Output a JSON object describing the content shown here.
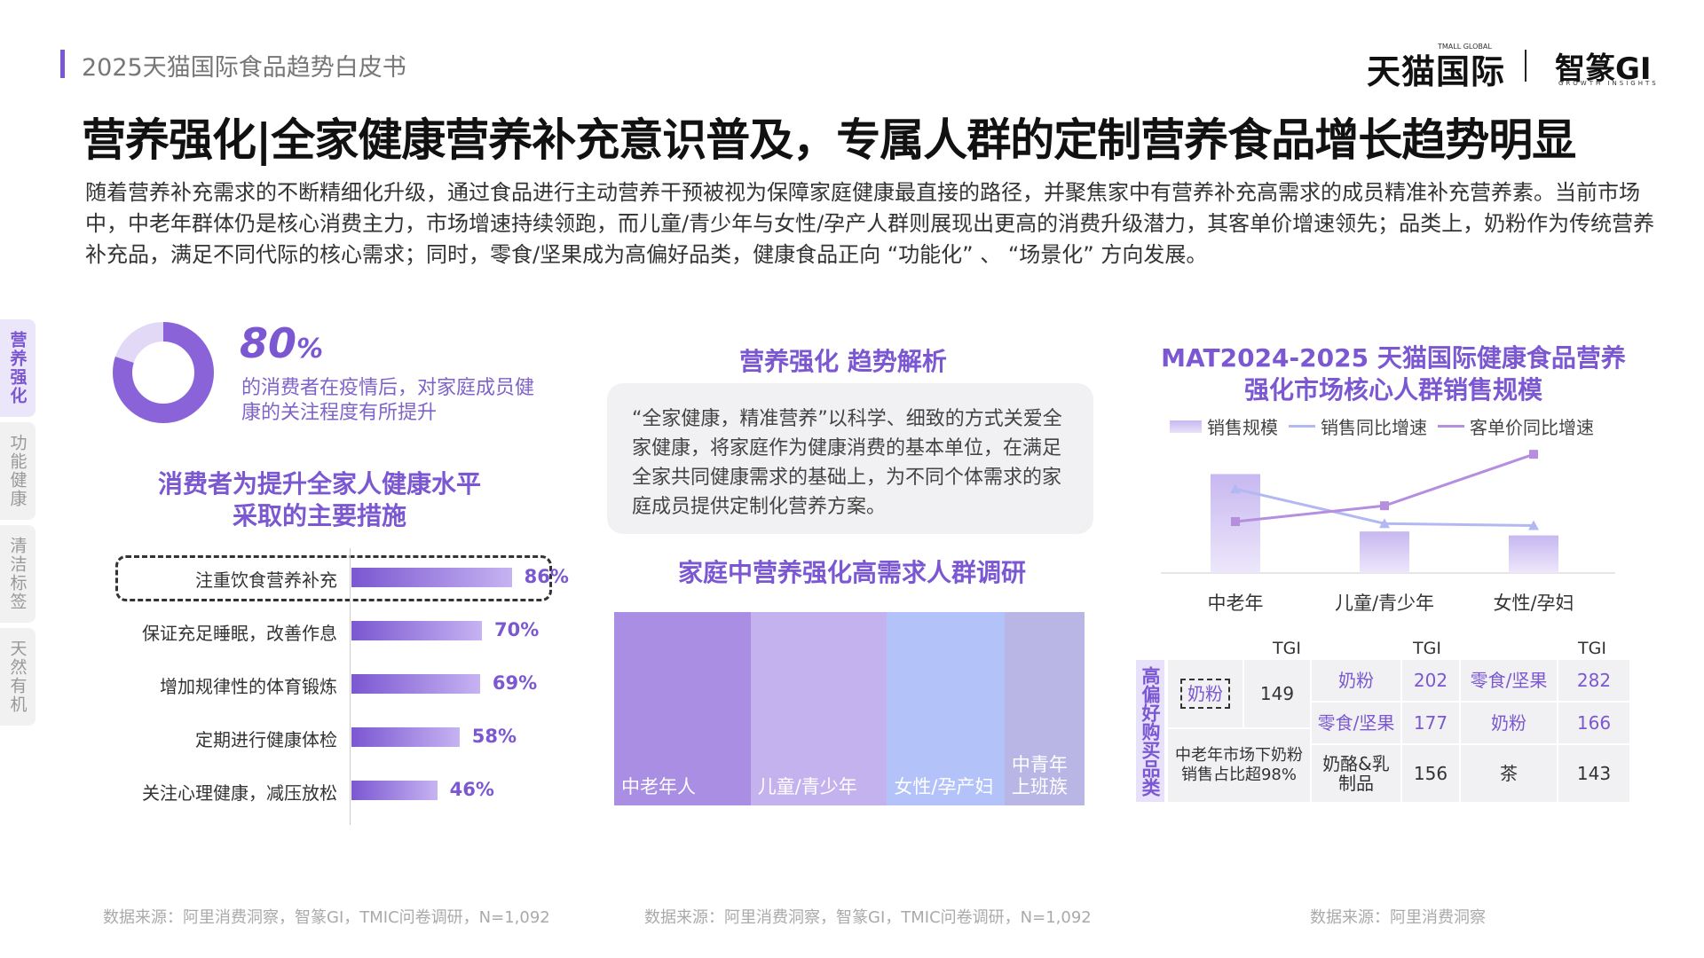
{
  "header": {
    "report_title": "2025天猫国际食品趋势白皮书",
    "brand1": "天猫国际",
    "brand1_sub": "TMALL GLOBAL",
    "brand2": "智篆GI",
    "brand2_sub": "GROWTH INSIGHTS"
  },
  "main_title": "营养强化|全家健康营养补充意识普及，专属人群的定制营养食品增长趋势明显",
  "intro": "随着营养补充需求的不断精细化升级，通过食品进行主动营养干预被视为保障家庭健康最直接的路径，并聚焦家中有营养补充高需求的成员精准补充营养素。当前市场中，中老年群体仍是核心消费主力，市场增速持续领跑，而儿童/青少年与女性/孕产人群则展现出更高的消费升级潜力，其客单价增速领先；品类上，奶粉作为传统营养补充品，满足不同代际的核心需求；同时，零食/坚果成为高偏好品类，健康食品正向 “功能化” 、 “场景化” 方向发展。",
  "side_nav": [
    "营养强化",
    "功能健康",
    "清洁标签",
    "天然有机"
  ],
  "stat": {
    "value": "80",
    "unit": "%",
    "fraction": 0.8,
    "desc": "的消费者在疫情后，对家庭成员健康的关注程度有所提升"
  },
  "left_chart": {
    "title_line1": "消费者为提升全家人健康水平",
    "title_line2": "采取的主要措施",
    "items": [
      {
        "label": "注重饮食营养补充",
        "value": 86,
        "value_label": "86%"
      },
      {
        "label": "保证充足睡眠，改善作息",
        "value": 70,
        "value_label": "70%"
      },
      {
        "label": "增加规律性的体育锻炼",
        "value": 69,
        "value_label": "69%"
      },
      {
        "label": "定期进行健康体检",
        "value": 58,
        "value_label": "58%"
      },
      {
        "label": "关注心理健康，减压放松",
        "value": 46,
        "value_label": "46%"
      }
    ]
  },
  "middle": {
    "title": "营养强化 趋势解析",
    "quote": "“全家健康，精准营养”以科学、细致的方式关爱全家健康，将家庭作为健康消费的基本单位，在满足全家共同健康需求的基础上，为不同个体需求的家庭成员提供定制化营养方案。",
    "survey_title": "家庭中营养强化高需求人群调研",
    "segments": [
      {
        "label": "中老年人",
        "share": 29,
        "color": "#a98ee3"
      },
      {
        "label": "儿童/青少年",
        "share": 29,
        "color": "#c4b2ee"
      },
      {
        "label": "女性/孕产妇",
        "share": 25,
        "color": "#b4c2fa"
      },
      {
        "label": "中青年\n上班族",
        "share": 17,
        "color": "#b9b6e6"
      }
    ]
  },
  "right_chart": {
    "title_line1": "MAT2024-2025 天猫国际健康食品营养",
    "title_line2": "强化市场核心人群销售规模",
    "legend": [
      "销售规模",
      "销售同比增速",
      "客单价同比增速"
    ],
    "categories": [
      "中老年",
      "儿童/青少年",
      "女性/孕妇"
    ]
  },
  "chart_data": {
    "type": "bar",
    "categories": [
      "中老年",
      "儿童/青少年",
      "女性/孕妇"
    ],
    "series": [
      {
        "name": "销售规模",
        "type": "bar",
        "values": [
          100,
          42,
          38
        ]
      },
      {
        "name": "销售同比增速",
        "type": "line",
        "values": [
          85,
          50,
          48
        ]
      },
      {
        "name": "客单价同比增速",
        "type": "line",
        "values": [
          52,
          68,
          120
        ]
      }
    ],
    "ylim": [
      0,
      130
    ],
    "colors": {
      "bar": "#c7b8f0",
      "sales_growth": "#b2b8f2",
      "price_growth": "#b58ee0"
    }
  },
  "tgi_table": {
    "vertical_label": "高偏好购买品类",
    "header": "TGI",
    "col1": {
      "category": "奶粉",
      "tgi": "149",
      "note": "中老年市场下奶粉销售占比超98%"
    },
    "col2": [
      {
        "category": "奶粉",
        "tgi": "202"
      },
      {
        "category": "零食/坚果",
        "tgi": "177"
      },
      {
        "category": "奶酪&乳制品",
        "tgi": "156"
      }
    ],
    "col3": [
      {
        "category": "零食/坚果",
        "tgi": "282"
      },
      {
        "category": "奶粉",
        "tgi": "166"
      },
      {
        "category": "茶",
        "tgi": "143"
      }
    ]
  },
  "sources": [
    "数据来源：阿里消费洞察，智篆GI，TMIC问卷调研，N=1,092",
    "数据来源：阿里消费洞察，智篆GI，TMIC问卷调研，N=1,092",
    "数据来源：阿里消费洞察"
  ]
}
